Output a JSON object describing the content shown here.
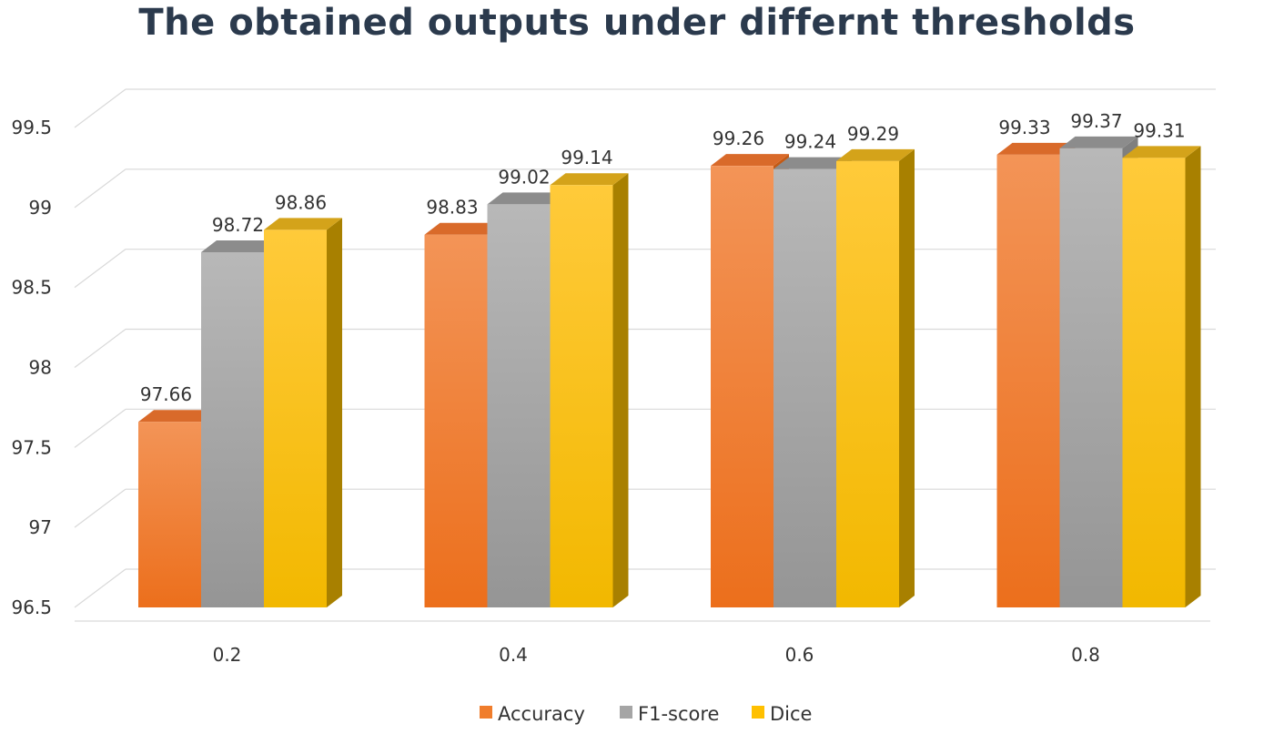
{
  "chart_data": {
    "type": "bar",
    "title": "The obtained outputs under differnt thresholds",
    "categories": [
      "0.2",
      "0.4",
      "0.6",
      "0.8"
    ],
    "series": [
      {
        "name": "Accuracy",
        "values": [
          97.66,
          98.83,
          99.26,
          99.33
        ],
        "color": "#f07d2c"
      },
      {
        "name": "F1-score",
        "values": [
          98.72,
          99.02,
          99.24,
          99.37
        ],
        "color": "#a5a5a5"
      },
      {
        "name": "Dice",
        "values": [
          98.86,
          99.14,
          99.29,
          99.31
        ],
        "color": "#ffc000"
      }
    ],
    "yticks": [
      "96.5",
      "97",
      "97.5",
      "98",
      "98.5",
      "99",
      "99.5"
    ],
    "ylim": [
      96.5,
      99.5
    ],
    "xlabel": "",
    "ylabel": "",
    "grid": true,
    "legend": "bottom",
    "style": "3d-bar"
  }
}
